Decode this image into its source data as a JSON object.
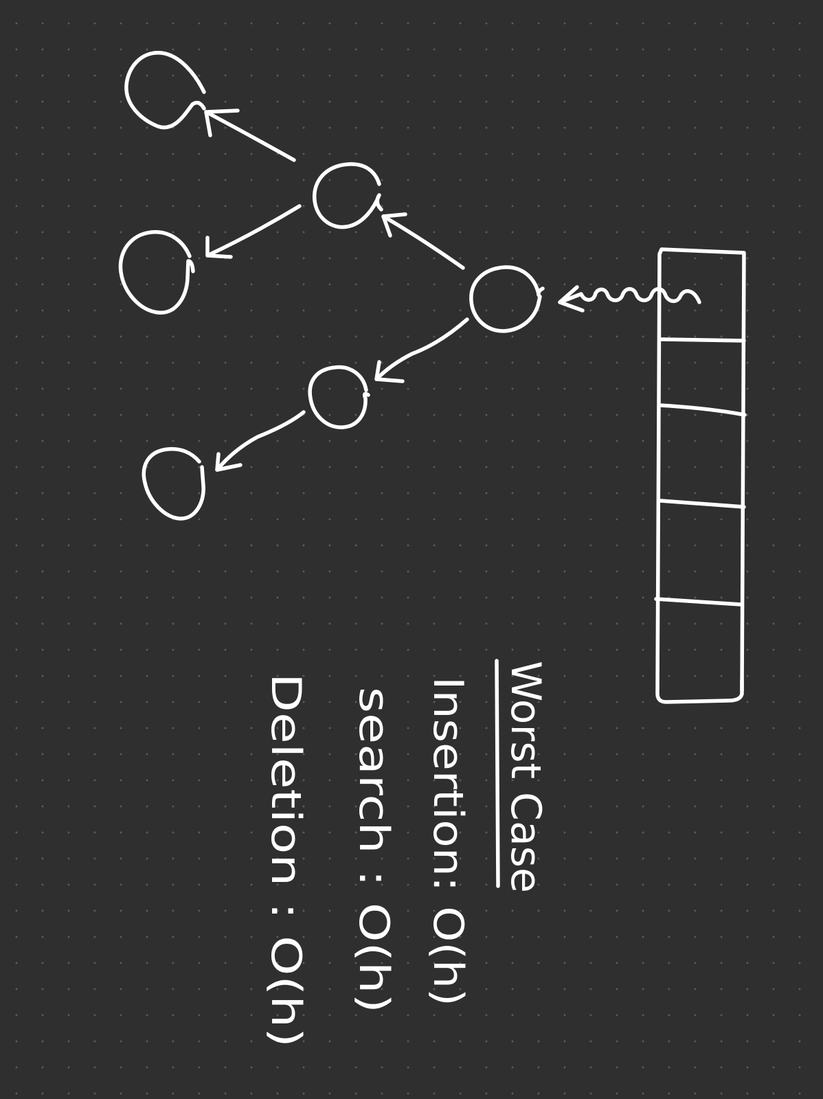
{
  "notes": {
    "heading": "Worst Case",
    "insertion": "Insertion: O(h)",
    "search": "search : O(h)",
    "deletion": "Deletion : O(h)"
  },
  "colors": {
    "background": "#2f2f2f",
    "grid_dot": "#5a5a5a",
    "ink": "#ffffff"
  },
  "diagram": {
    "tree_nodes": [
      "root",
      "left-child",
      "left-left-leaf",
      "left-right-leaf",
      "right-child",
      "right-right-leaf"
    ],
    "stack_cells": 5,
    "pointer": "stack top points to root"
  }
}
